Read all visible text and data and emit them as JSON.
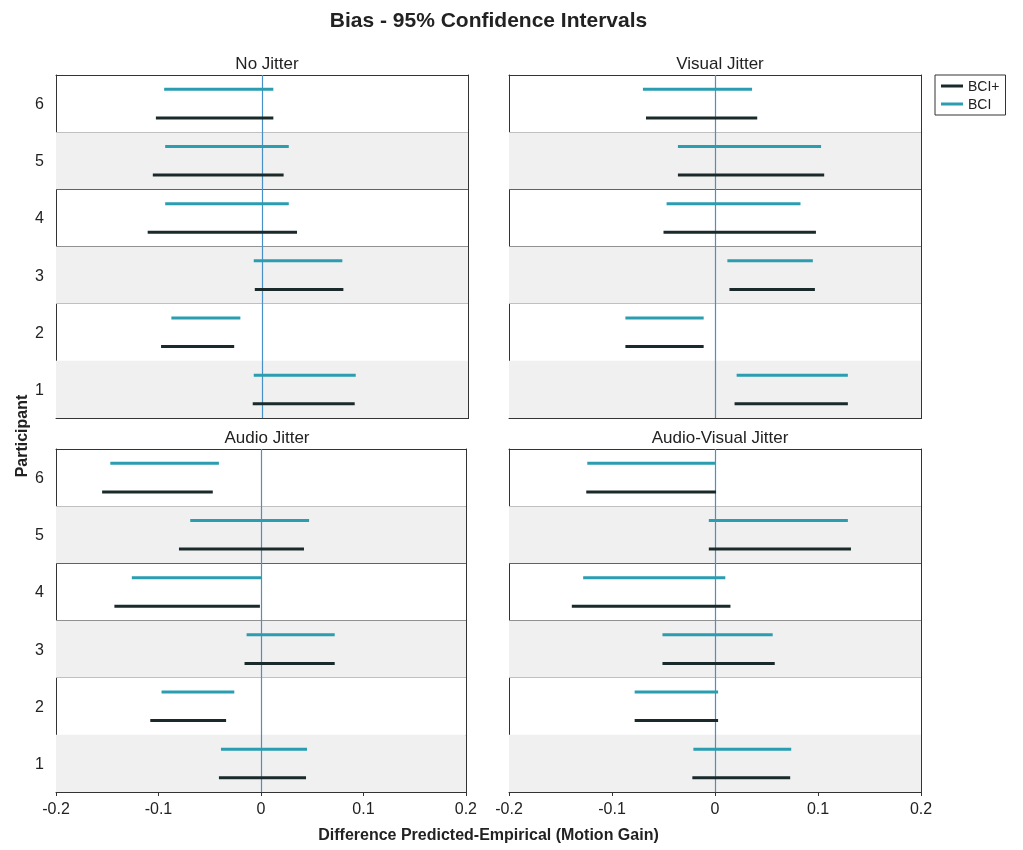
{
  "chart_data": [
    {
      "type": "bar",
      "orientation": "horizontal",
      "title": "No Jitter",
      "annotations": [
        "Bias - 95% Confidence Intervals"
      ],
      "ylabel": "Participant",
      "categories": [
        "6",
        "5",
        "4",
        "3",
        "2",
        "1"
      ],
      "xlim": [
        -0.2,
        0.2
      ],
      "xticks": [
        -0.2,
        -0.1,
        0,
        0.1,
        0.2
      ],
      "grid": "y",
      "tick_labels": "y",
      "bands": [
        {
          "axis": "y",
          "from": "5",
          "to": "5",
          "color": "#f0f0f0"
        },
        {
          "axis": "y",
          "from": "3",
          "to": "3",
          "color": "#f0f0f0"
        },
        {
          "axis": "y",
          "from": "1",
          "to": "1",
          "color": "#f0f0f0"
        }
      ],
      "ref_lines": [
        {
          "axis": "x",
          "value": 0,
          "color": "#4a90c8"
        }
      ],
      "series": [
        {
          "color": "#1a2a2a",
          "base": [
            -0.103,
            -0.106,
            -0.111,
            -0.007,
            -0.098,
            -0.009
          ],
          "values": [
            0.114,
            0.127,
            0.145,
            0.086,
            0.071,
            0.099
          ]
        },
        {
          "color": "#2a9db0",
          "base": [
            -0.095,
            -0.094,
            -0.094,
            -0.008,
            -0.088,
            -0.008
          ],
          "values": [
            0.106,
            0.12,
            0.12,
            0.086,
            0.067,
            0.099
          ]
        }
      ]
    },
    {
      "type": "bar",
      "orientation": "horizontal",
      "title": "Visual Jitter",
      "categories": [
        "6",
        "5",
        "4",
        "3",
        "2",
        "1"
      ],
      "xlim": [
        -0.2,
        0.2
      ],
      "xticks": [
        -0.2,
        -0.1,
        0,
        0.1,
        0.2
      ],
      "grid": "y",
      "tick_labels": false,
      "legend": "top right",
      "bands": [
        {
          "axis": "y",
          "from": "5",
          "to": "5",
          "color": "#f0f0f0"
        },
        {
          "axis": "y",
          "from": "3",
          "to": "3",
          "color": "#f0f0f0"
        },
        {
          "axis": "y",
          "from": "1",
          "to": "1",
          "color": "#f0f0f0"
        }
      ],
      "ref_lines": [
        {
          "axis": "x",
          "value": 0,
          "color": "#4a90c8"
        }
      ],
      "series": [
        {
          "name": "BCI+",
          "color": "#1a2a2a",
          "base": [
            -0.067,
            -0.036,
            -0.05,
            0.014,
            -0.087,
            0.019
          ],
          "values": [
            0.108,
            0.142,
            0.148,
            0.083,
            0.076,
            0.11
          ]
        },
        {
          "name": "BCI",
          "color": "#2a9db0",
          "base": [
            -0.07,
            -0.036,
            -0.047,
            0.012,
            -0.087,
            0.021
          ],
          "values": [
            0.106,
            0.139,
            0.13,
            0.083,
            0.076,
            0.108
          ]
        }
      ]
    },
    {
      "type": "bar",
      "orientation": "horizontal",
      "title": "Audio Jitter",
      "xlabel": "Difference Predicted-Empirical (Motion Gain)",
      "categories": [
        "6",
        "5",
        "4",
        "3",
        "2",
        "1"
      ],
      "xlim": [
        -0.2,
        0.2
      ],
      "xticks": [
        -0.2,
        -0.1,
        0,
        0.1,
        0.2
      ],
      "grid": "y",
      "bands": [
        {
          "axis": "y",
          "from": "5",
          "to": "5",
          "color": "#f0f0f0"
        },
        {
          "axis": "y",
          "from": "3",
          "to": "3",
          "color": "#f0f0f0"
        },
        {
          "axis": "y",
          "from": "1",
          "to": "1",
          "color": "#f0f0f0"
        }
      ],
      "ref_lines": [
        {
          "axis": "x",
          "value": 0,
          "color": "#4a90c8"
        }
      ],
      "series": [
        {
          "color": "#1a2a2a",
          "base": [
            -0.155,
            -0.08,
            -0.143,
            -0.016,
            -0.108,
            -0.041
          ],
          "values": [
            0.108,
            0.122,
            0.142,
            0.088,
            0.074,
            0.085
          ]
        },
        {
          "color": "#2a9db0",
          "base": [
            -0.147,
            -0.069,
            -0.126,
            -0.014,
            -0.097,
            -0.039
          ],
          "values": [
            0.106,
            0.116,
            0.127,
            0.086,
            0.071,
            0.084
          ]
        }
      ]
    },
    {
      "type": "bar",
      "orientation": "horizontal",
      "title": "Audio-Visual Jitter",
      "categories": [
        "6",
        "5",
        "4",
        "3",
        "2",
        "1"
      ],
      "xlim": [
        -0.2,
        0.2
      ],
      "xticks": [
        -0.2,
        -0.1,
        0,
        0.1,
        0.2
      ],
      "grid": "y",
      "tick_labels": "x",
      "bands": [
        {
          "axis": "y",
          "from": "5",
          "to": "5",
          "color": "#f0f0f0"
        },
        {
          "axis": "y",
          "from": "3",
          "to": "3",
          "color": "#f0f0f0"
        },
        {
          "axis": "y",
          "from": "1",
          "to": "1",
          "color": "#f0f0f0"
        }
      ],
      "ref_lines": [
        {
          "axis": "x",
          "value": 0,
          "color": "#4a90c8"
        }
      ],
      "series": [
        {
          "color": "#1a2a2a",
          "base": [
            -0.125,
            -0.006,
            -0.139,
            -0.051,
            -0.078,
            -0.022
          ],
          "values": [
            0.126,
            0.138,
            0.154,
            0.109,
            0.081,
            0.095
          ]
        },
        {
          "color": "#2a9db0",
          "base": [
            -0.124,
            -0.006,
            -0.128,
            -0.051,
            -0.078,
            -0.021
          ],
          "values": [
            0.124,
            0.135,
            0.138,
            0.107,
            0.081,
            0.095
          ]
        }
      ]
    }
  ]
}
